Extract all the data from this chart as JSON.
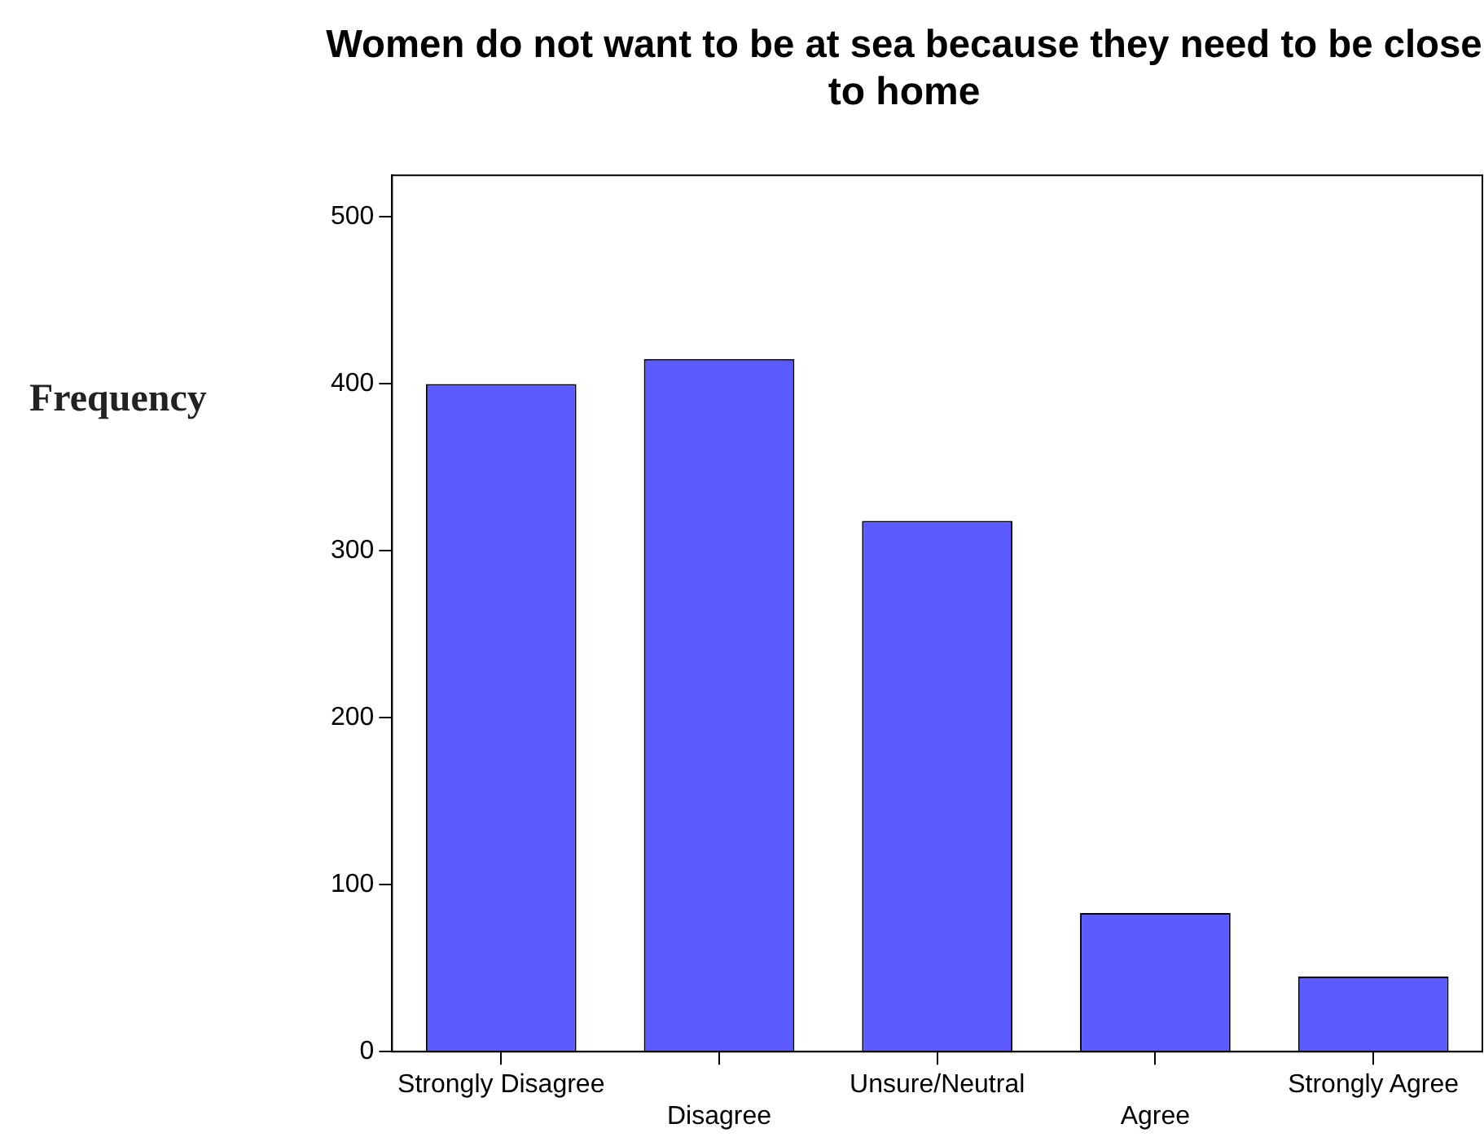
{
  "chart_data": {
    "type": "bar",
    "title": "Women do not want to be at sea because they need to be close to home",
    "ylabel": "Frequency",
    "categories": [
      "Strongly Disagree",
      "Disagree",
      "Unsure/Neutral",
      "Agree",
      "Strongly Agree"
    ],
    "values": [
      400,
      415,
      318,
      83,
      45
    ],
    "color": "#5b5bff",
    "ylim": [
      0,
      525
    ],
    "yticks": [
      0,
      100,
      200,
      300,
      400,
      500
    ],
    "grid": false,
    "legend": false
  }
}
